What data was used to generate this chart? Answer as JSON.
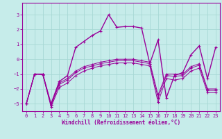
{
  "xlabel": "Windchill (Refroidissement éolien,°C)",
  "xlim": [
    -0.5,
    23.5
  ],
  "ylim": [
    -3.5,
    3.8
  ],
  "yticks": [
    -3,
    -2,
    -1,
    0,
    1,
    2,
    3
  ],
  "xticks": [
    0,
    1,
    2,
    3,
    4,
    5,
    6,
    7,
    8,
    9,
    10,
    11,
    12,
    13,
    14,
    15,
    16,
    17,
    18,
    19,
    20,
    21,
    22,
    23
  ],
  "bg_color": "#c6ecea",
  "grid_color": "#a8d8d5",
  "line_color": "#990099",
  "lines": [
    {
      "x": [
        0,
        1,
        2,
        3,
        4,
        5,
        6,
        7,
        8,
        9,
        10,
        11,
        12,
        13,
        14,
        15,
        16,
        17,
        18,
        19,
        20,
        21,
        22,
        23
      ],
      "y": [
        -3.0,
        -1.0,
        -1.0,
        -3.1,
        -1.6,
        -1.3,
        -0.8,
        -0.5,
        -0.35,
        -0.2,
        -0.1,
        0.0,
        0.0,
        0.0,
        -0.1,
        -0.2,
        -2.4,
        -1.0,
        -1.0,
        -1.0,
        -0.5,
        -0.3,
        -2.0,
        -2.0
      ]
    },
    {
      "x": [
        0,
        1,
        2,
        3,
        4,
        5,
        6,
        7,
        8,
        9,
        10,
        11,
        12,
        13,
        14,
        15,
        16,
        17,
        18,
        19,
        20,
        21,
        22,
        23
      ],
      "y": [
        -3.0,
        -1.0,
        -1.0,
        -3.1,
        -1.7,
        -1.4,
        -0.9,
        -0.6,
        -0.45,
        -0.3,
        -0.2,
        -0.1,
        -0.1,
        -0.1,
        -0.2,
        -0.3,
        -2.6,
        -1.1,
        -1.15,
        -1.1,
        -0.6,
        -0.4,
        -2.1,
        -2.1
      ]
    },
    {
      "x": [
        0,
        1,
        2,
        3,
        4,
        5,
        6,
        7,
        8,
        9,
        10,
        11,
        12,
        13,
        14,
        15,
        16,
        17,
        18,
        19,
        20,
        21,
        22,
        23
      ],
      "y": [
        -3.0,
        -1.0,
        -1.05,
        -3.2,
        -1.9,
        -1.6,
        -1.1,
        -0.8,
        -0.6,
        -0.45,
        -0.35,
        -0.25,
        -0.25,
        -0.25,
        -0.35,
        -0.45,
        -2.9,
        -1.3,
        -1.4,
        -1.3,
        -0.8,
        -0.6,
        -2.25,
        -2.25
      ]
    },
    {
      "x": [
        0,
        1,
        2,
        3,
        4,
        5,
        6,
        7,
        8,
        9,
        10,
        11,
        12,
        13,
        14,
        15,
        16,
        17,
        18,
        19,
        20,
        21,
        22,
        23
      ],
      "y": [
        -3.0,
        -1.0,
        -1.0,
        -3.0,
        -1.5,
        -1.1,
        0.8,
        1.2,
        1.6,
        1.9,
        3.0,
        2.15,
        2.2,
        2.2,
        2.1,
        -0.3,
        1.3,
        -2.6,
        -1.1,
        -0.9,
        0.3,
        0.9,
        -1.3,
        0.8
      ]
    }
  ]
}
